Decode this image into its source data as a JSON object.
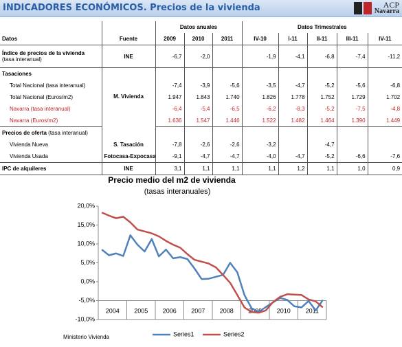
{
  "header": {
    "title": "INDICADORES ECONÓMICOS. Precios de la vivienda",
    "logo": "ACP",
    "logo_sub": "Navarra"
  },
  "table": {
    "group_headers": [
      "Datos anuales",
      "Datos Trimestrales"
    ],
    "columns": [
      "Datos",
      "Fuente",
      "2009",
      "2010",
      "2011",
      "IV-10",
      "I-11",
      "II-11",
      "III-11",
      "IV-11"
    ],
    "rows": [
      {
        "label": [
          "Índice de precios de la vivienda",
          "(tasa interanual)"
        ],
        "source": "INE",
        "values": [
          "-6,7",
          "-2,0",
          null,
          "-1,9",
          "-4,1",
          "-6,8",
          "-7,4",
          "-11,2"
        ]
      },
      {
        "label": [
          "Tasaciones"
        ]
      },
      {
        "label": [
          "Total Nacional (tasa interanual)"
        ],
        "source": "M. Vivienda",
        "values": [
          "-7,4",
          "-3,9",
          "-5,6",
          "-3,5",
          "-4,7",
          "-5,2",
          "-5,6",
          "-6,8"
        ]
      },
      {
        "label": [
          "Total Nacional (Euros/m2)"
        ],
        "values": [
          "1.947",
          "1.843",
          "1.740",
          "1.826",
          "1.778",
          "1.752",
          "1.729",
          "1.702"
        ]
      },
      {
        "label": [
          "Navarra (tasa interanual)"
        ],
        "values": [
          "-6,4",
          "-5,4",
          "-6,5",
          "-6,2",
          "-8,3",
          "-5,2",
          "-7,5",
          "-4,8"
        ]
      },
      {
        "label": [
          "Navarra (Euros/m2)"
        ],
        "values": [
          "1.636",
          "1.547",
          "1.446",
          "1.522",
          "1.482",
          "1.464",
          "1.390",
          "1.449"
        ]
      },
      {
        "label": [
          "Precios de oferta",
          "(tasa interanual)"
        ]
      },
      {
        "label": [
          "Vivienda Nueva"
        ],
        "source": "S. Tasación",
        "values": [
          "-7,8",
          "-2,6",
          "-2,6",
          "-3,2",
          null,
          "-4,7",
          null,
          null
        ]
      },
      {
        "label": [
          "Vivienda Usada"
        ],
        "source": "Fotocasa-Expocasa",
        "values": [
          "-9,1",
          "-4,7",
          "-4,7",
          "-4,0",
          "-4,7",
          "-5,2",
          "-6,6",
          "-7,6"
        ]
      },
      {
        "label": [
          "IPC de alquileres"
        ],
        "source": "INE",
        "values": [
          "3,1",
          "1,1",
          "1,1",
          "1,1",
          "1,2",
          "1,1",
          "1,0",
          "0,9"
        ]
      }
    ]
  },
  "chart_data": {
    "type": "line",
    "title": "Precio medio del m2 de vivienda",
    "subtitle": "(tasas interanuales)",
    "source_note": "Ministerio Vivienda",
    "categories": [
      null,
      "2004",
      null,
      null,
      null,
      "2005",
      null,
      null,
      null,
      "2006",
      null,
      null,
      null,
      "2007",
      null,
      null,
      null,
      "2008",
      null,
      null,
      null,
      "2009",
      null,
      null,
      null,
      "2010",
      null,
      null,
      null,
      "2011",
      null,
      null
    ],
    "series": [
      {
        "name": "Series1",
        "color": "#4f81bd",
        "values": [
          8.5,
          7.0,
          7.5,
          6.8,
          12.3,
          9.8,
          8.0,
          11.3,
          6.7,
          8.5,
          6.2,
          6.5,
          6.0,
          3.5,
          0.7,
          0.8,
          1.3,
          1.8,
          5.0,
          2.5,
          -3.5,
          -7.0,
          -8.0,
          -6.7,
          -5.5,
          -4.3,
          -4.8,
          -6.5,
          -6.8,
          -5.1,
          -7.6,
          -4.8
        ]
      },
      {
        "name": "Series2",
        "color": "#c0504d",
        "values": [
          18.3,
          17.5,
          16.8,
          17.2,
          15.7,
          13.8,
          13.3,
          12.8,
          12.0,
          10.8,
          9.8,
          9.0,
          7.3,
          5.8,
          5.3,
          4.8,
          3.8,
          1.8,
          -0.3,
          -3.5,
          -6.8,
          -8.0,
          -8.2,
          -7.6,
          -5.4,
          -4.0,
          -3.3,
          -3.4,
          -3.5,
          -4.7,
          -5.2,
          -6.8
        ]
      }
    ],
    "ylim": [
      -10,
      20
    ],
    "yticks": [
      {
        "value": 20,
        "label": "20,0%"
      },
      {
        "value": 15,
        "label": "15,0%"
      },
      {
        "value": 10,
        "label": "10,0%"
      },
      {
        "value": 5,
        "label": "5,0%"
      },
      {
        "value": 0,
        "label": "0,0%"
      },
      {
        "value": -5,
        "label": "-5,0%"
      },
      {
        "value": -10,
        "label": "-10,0%"
      }
    ],
    "legend": "bottom"
  }
}
